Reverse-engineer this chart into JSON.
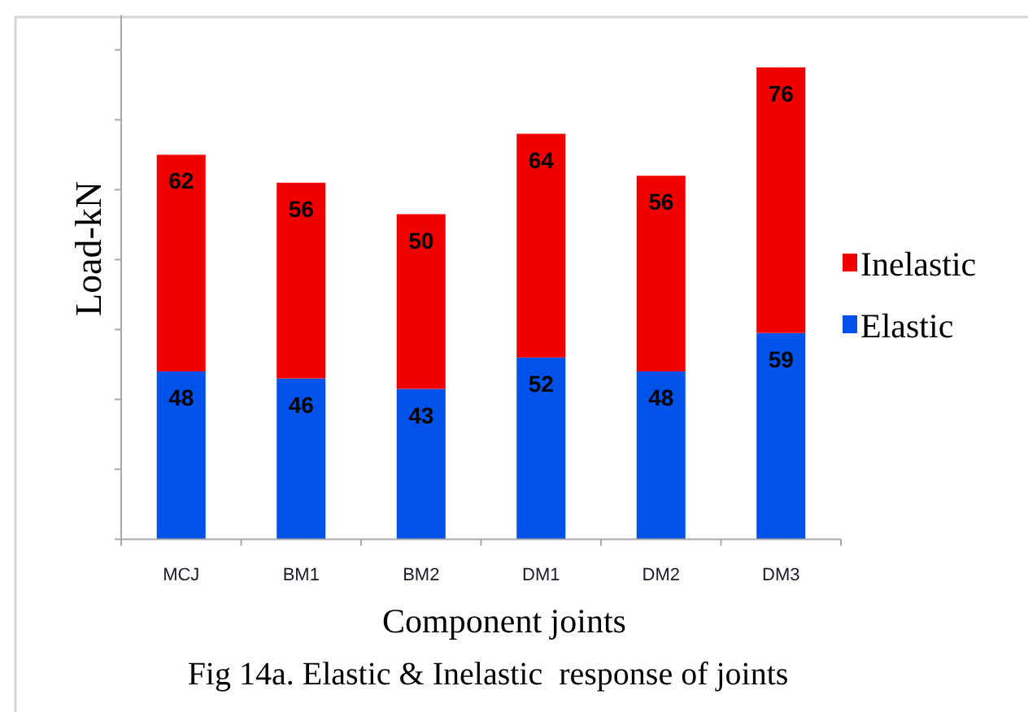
{
  "chart_data": {
    "type": "bar",
    "stacked": true,
    "categories": [
      "MCJ",
      "BM1",
      "BM2",
      "DM1",
      "DM2",
      "DM3"
    ],
    "series": [
      {
        "name": "Elastic",
        "color": "#0052e8",
        "values": [
          48,
          46,
          43,
          52,
          48,
          59
        ]
      },
      {
        "name": "Inelastic",
        "color": "#f00000",
        "values": [
          62,
          56,
          50,
          64,
          56,
          76
        ]
      }
    ],
    "xlabel": "Component joints",
    "ylabel": "Load-kN",
    "annotations": [
      "Fig 14a. Elastic & Inelastic  response of joints"
    ],
    "ylim": [
      0,
      150
    ],
    "yticks": [
      {
        "value": 0,
        "label": null
      },
      {
        "value": 20,
        "label": null
      },
      {
        "value": 40,
        "label": null
      },
      {
        "value": 60,
        "label": null
      },
      {
        "value": 80,
        "label": null
      },
      {
        "value": 100,
        "label": null
      },
      {
        "value": 120,
        "label": null
      },
      {
        "value": 140,
        "label": null
      }
    ],
    "tick_labels": "x",
    "legend": "right",
    "data_labels": true
  }
}
